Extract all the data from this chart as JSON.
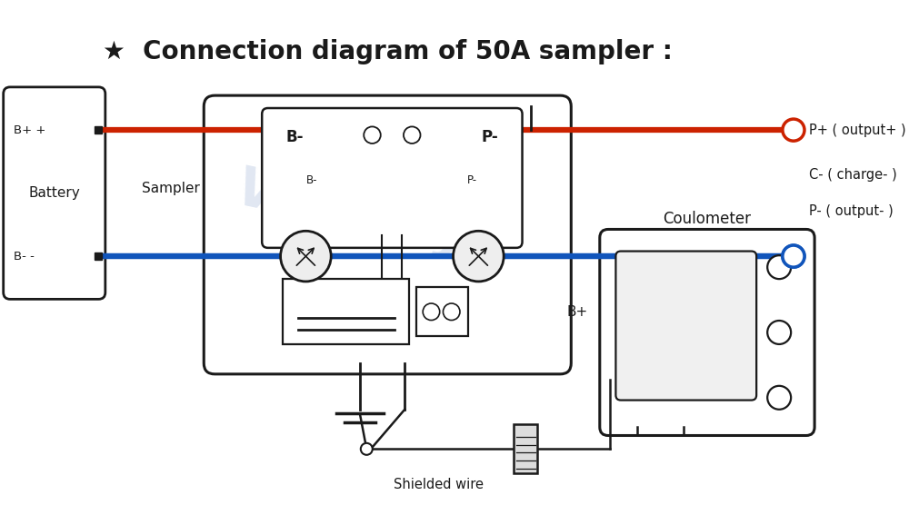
{
  "title": "★  Connection diagram of 50A sampler :",
  "title_fontsize": 20,
  "bg_color": "#ffffff",
  "line_color": "#1a1a1a",
  "red_color": "#cc2200",
  "blue_color": "#1155bb",
  "text_color": "#1a1a1a",
  "watermark_color": "#c8d4e8",
  "labels": {
    "battery": "Battery",
    "sampler": "Sampler",
    "bpp": "B+ +",
    "bmm": "B- -",
    "bm_big": "B-",
    "pm_big": "P-",
    "bm_small": "B-",
    "pm_small": "P-",
    "bp": "B+",
    "pplus": "P+ ( output+ )",
    "cminus": "C- ( charge- )",
    "pminus": "P- ( output- )",
    "coulometer": "Coulometer",
    "shielded": "Shielded wire"
  },
  "xlim": [
    0,
    10
  ],
  "ylim": [
    0,
    5.67
  ]
}
